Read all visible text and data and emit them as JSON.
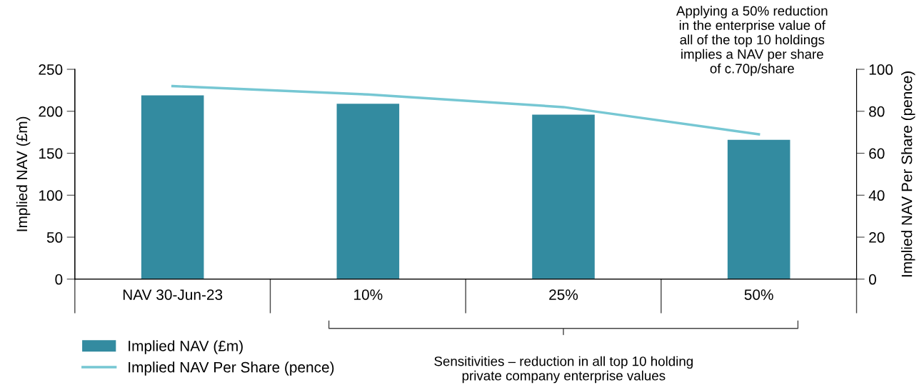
{
  "chart_data": {
    "type": "bar",
    "categories": [
      "NAV 30-Jun-23",
      "10%",
      "25%",
      "50%"
    ],
    "series": [
      {
        "name": "Implied NAV (£m)",
        "color": "#338ba0",
        "values": [
          219,
          209,
          196,
          166
        ]
      },
      {
        "name": "Implied NAV Per Share (pence)",
        "type": "line",
        "axis": "y2",
        "color": "#76c7d3",
        "values": [
          92,
          88,
          82,
          69
        ]
      }
    ],
    "ylabel": "Implied NAV (£m)",
    "y2label": "Implied NAV Per Share (pence)",
    "ylim": [
      0,
      250
    ],
    "yticks": [
      0,
      50,
      100,
      150,
      200,
      250
    ],
    "y2lim": [
      0,
      100
    ],
    "y2ticks": [
      0,
      20,
      40,
      60,
      80,
      100
    ],
    "grid": false,
    "legend": "bottom left",
    "marker": "none",
    "line_style": "solid",
    "annotations": [
      "Applying a 50% reduction\nin the enterprise value of\nall of the top 10 holdings\nimplies a NAV per share\nof c.70p/share",
      "Sensitivities – reduction in all top 10 holding\nprivate company enterprise values"
    ]
  }
}
